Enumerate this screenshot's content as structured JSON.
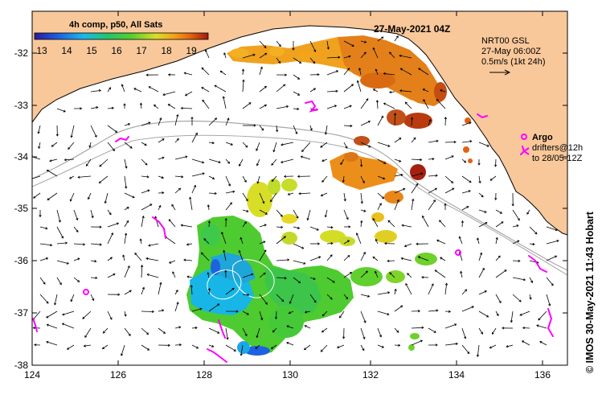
{
  "map": {
    "title": "27-May-2021 04Z",
    "colorbar": {
      "title": "4h comp, p50, All Sats",
      "ticks": [
        "13",
        "14",
        "15",
        "16",
        "17",
        "18",
        "19"
      ],
      "min": 12.5,
      "max": 19.5
    },
    "current_note": {
      "line1": "NRT00 GSL",
      "line2": "27-May 06:00Z",
      "line3": "0.5m/s (1kt 24h)"
    },
    "argo_legend": {
      "label": "Argo",
      "line1": "drifters@12h",
      "line2": "to 28/05-12Z"
    },
    "side_text": "© IMOS 30-May-2021 11:43 Hobart",
    "lon_ticks": [
      "124",
      "126",
      "128",
      "130",
      "132",
      "134",
      "136"
    ],
    "lat_ticks": [
      "-32",
      "-33",
      "-34",
      "-35",
      "-36",
      "-37",
      "-38"
    ],
    "colors": {
      "land": "#f9c89a",
      "ocean": "#ffffff",
      "contour": "#a8a8a8",
      "drifter": "#ff00ff",
      "colorbar_stops": [
        "#2b1a9c",
        "#1d62e0",
        "#19b8ee",
        "#22c46e",
        "#54d12e",
        "#d8de28",
        "#f2a518",
        "#e4620f",
        "#9e1a0e"
      ]
    }
  }
}
